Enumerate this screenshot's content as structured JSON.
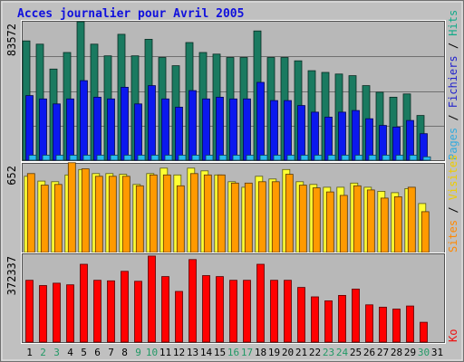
{
  "chart_data": {
    "type": "bar",
    "title": "Acces journalier pour Avril 2005",
    "title_color": "#1010dd",
    "categories": [
      "1",
      "2",
      "3",
      "4",
      "5",
      "6",
      "7",
      "8",
      "9",
      "10",
      "11",
      "12",
      "13",
      "14",
      "15",
      "16",
      "17",
      "18",
      "19",
      "20",
      "21",
      "22",
      "23",
      "24",
      "25",
      "26",
      "27",
      "28",
      "29",
      "30",
      "31"
    ],
    "weekend_days": [
      "2",
      "3",
      "9",
      "10",
      "16",
      "17",
      "23",
      "24",
      "30"
    ],
    "empty_days": [
      "31"
    ],
    "panels": [
      {
        "ymax_label": "83572",
        "ylim": [
          0,
          83572
        ],
        "grid": true,
        "legend": [
          {
            "text": "Pages",
            "color": "#33aadd"
          },
          {
            "text": " / ",
            "color": "#000000"
          },
          {
            "text": "Fichiers",
            "color": "#2222cc"
          },
          {
            "text": " / ",
            "color": "#000000"
          },
          {
            "text": "Hits",
            "color": "#11aa88"
          }
        ],
        "series": [
          {
            "name": "Hits",
            "color": "#1a7a60",
            "values": [
              72000,
              70000,
              55000,
              65000,
              83572,
              70000,
              63000,
              76000,
              63000,
              73000,
              62000,
              57000,
              71000,
              65000,
              64000,
              62000,
              62000,
              78000,
              62000,
              62000,
              60000,
              54000,
              53000,
              52000,
              51000,
              45000,
              41000,
              38000,
              40000,
              27000,
              0
            ]
          },
          {
            "name": "Fichiers",
            "color": "#0b18ee",
            "values": [
              39000,
              37000,
              34000,
              37000,
              48000,
              38000,
              37000,
              44000,
              34000,
              45000,
              37000,
              32000,
              42000,
              37000,
              38000,
              37000,
              37000,
              47000,
              36000,
              36000,
              33000,
              29000,
              26000,
              29000,
              30000,
              25000,
              21000,
              20000,
              24000,
              16000,
              0
            ]
          },
          {
            "name": "Pages",
            "color": "#28bbee",
            "values": [
              3000,
              3000,
              3000,
              3000,
              3000,
              3000,
              3000,
              3000,
              3000,
              3000,
              3000,
              3000,
              3000,
              3000,
              3000,
              3000,
              3000,
              3000,
              3000,
              3000,
              3000,
              3000,
              3000,
              3000,
              3000,
              3000,
              3000,
              3000,
              3000,
              2000,
              0
            ]
          }
        ]
      },
      {
        "ymax_label": "652",
        "ylim": [
          0,
          652
        ],
        "grid": false,
        "legend": [
          {
            "text": "Sites",
            "color": "#ff8800"
          },
          {
            "text": " / ",
            "color": "#000000"
          },
          {
            "text": "Visites",
            "color": "#eecc00"
          }
        ],
        "series": [
          {
            "name": "Visites",
            "color": "#ffff33",
            "values": [
              560,
              525,
              520,
              570,
              610,
              580,
              580,
              575,
              500,
              580,
              620,
              570,
              620,
              600,
              570,
              520,
              480,
              560,
              540,
              610,
              520,
              500,
              480,
              480,
              510,
              480,
              450,
              440,
              470,
              360,
              0
            ]
          },
          {
            "name": "Sites",
            "color": "#ff9a00",
            "values": [
              580,
              495,
              500,
              660,
              615,
              560,
              560,
              560,
              490,
              570,
              570,
              490,
              580,
              570,
              570,
              510,
              510,
              520,
              520,
              575,
              495,
              475,
              445,
              420,
              490,
              460,
              400,
              410,
              480,
              300,
              0
            ]
          }
        ]
      },
      {
        "ymax_label": "372337",
        "ylim": [
          0,
          372337
        ],
        "grid": false,
        "legend": [
          {
            "text": "Ko",
            "color": "#ee1111"
          }
        ],
        "series": [
          {
            "name": "Ko",
            "color": "#ff0000",
            "values": [
              262000,
              240000,
              250000,
              243000,
              330000,
              262000,
              260000,
              300000,
              258000,
              365000,
              278000,
              215000,
              350000,
              282000,
              278000,
              262000,
              262000,
              330000,
              262000,
              262000,
              232000,
              192000,
              175000,
              198000,
              225000,
              158000,
              148000,
              140000,
              153000,
              84000,
              0
            ]
          }
        ]
      }
    ]
  }
}
